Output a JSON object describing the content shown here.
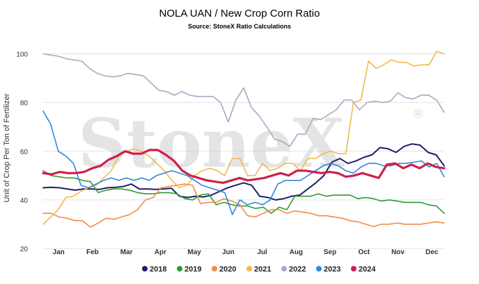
{
  "chart_data": {
    "type": "line",
    "title": "NOLA UAN / New Crop Corn Ratio",
    "subtitle": "Source: StoneX Ratio Calculations",
    "xlabel": "",
    "ylabel": "Unit of Crop Per Ton of Fertilizer",
    "ylim": [
      20,
      105
    ],
    "yticks": [
      20,
      40,
      60,
      80,
      100
    ],
    "xlim": [
      0,
      52
    ],
    "xticks": [
      {
        "label": "Jan",
        "x": 2
      },
      {
        "label": "Feb",
        "x": 6.4
      },
      {
        "label": "Mar",
        "x": 10.8
      },
      {
        "label": "Apr",
        "x": 15.2
      },
      {
        "label": "May",
        "x": 19.6
      },
      {
        "label": "Jun",
        "x": 24
      },
      {
        "label": "Jul",
        "x": 28.4
      },
      {
        "label": "Aug",
        "x": 32.8
      },
      {
        "label": "Sep",
        "x": 37.2
      },
      {
        "label": "Oct",
        "x": 41.6
      },
      {
        "label": "Nov",
        "x": 46
      },
      {
        "label": "Dec",
        "x": 50.4
      }
    ],
    "grid": true,
    "legend_position": "bottom",
    "watermark": "StoneX",
    "watermark_mark": "®",
    "series": [
      {
        "name": "2018",
        "color": "#1a1f6b",
        "width": 2,
        "values": [
          45,
          45.2,
          45,
          44.5,
          44,
          44.5,
          44.5,
          44.3,
          45,
          45.2,
          45.5,
          46.5,
          44.5,
          44.5,
          44.3,
          44.5,
          44.8,
          41.5,
          41,
          41.5,
          41.2,
          42,
          43.5,
          45,
          46,
          47,
          46,
          41.5,
          41,
          40,
          40.5,
          41.5,
          42,
          44.5,
          47,
          50,
          55.5,
          57,
          55,
          56,
          57.5,
          58.5,
          61.5,
          61,
          59.5,
          62,
          63,
          62.5,
          59.5,
          58.5,
          54
        ]
      },
      {
        "name": "2019",
        "color": "#2e9a2e",
        "width": 1.6,
        "values": [
          52,
          50,
          49.5,
          49,
          49,
          48,
          47.5,
          43,
          44,
          44.5,
          44.5,
          44,
          43,
          42.5,
          42.5,
          43,
          43,
          42.5,
          40.5,
          40,
          42,
          42.5,
          38,
          39,
          38,
          37.5,
          37.5,
          36.5,
          37,
          34.5,
          37,
          36,
          41.5,
          41.5,
          41.5,
          42.5,
          41.5,
          42,
          42,
          42,
          40.5,
          41,
          40.5,
          39.5,
          40,
          39.5,
          39,
          39,
          39,
          38,
          37.5,
          34.5
        ]
      },
      {
        "name": "2020",
        "color": "#f08c4a",
        "width": 1.6,
        "values": [
          34.5,
          34.5,
          33,
          32.5,
          31.5,
          31.5,
          28.8,
          30.5,
          32.5,
          32,
          33,
          34,
          36,
          40,
          41,
          45,
          45.5,
          46,
          46.5,
          46,
          38.5,
          39,
          39,
          40.5,
          39.5,
          38,
          33.5,
          33,
          34.5,
          36,
          36,
          34.5,
          35.5,
          35,
          34.5,
          33.5,
          33.5,
          33,
          32.5,
          31.5,
          31,
          30,
          29,
          30,
          30,
          30.5,
          30,
          30,
          30,
          30.5,
          31,
          30.5
        ]
      },
      {
        "name": "2021",
        "color": "#f5b84a",
        "width": 1.6,
        "values": [
          30,
          33,
          36,
          41,
          41.5,
          43.5,
          45,
          46,
          49,
          52,
          58,
          60,
          61,
          60,
          58,
          55,
          52,
          48,
          45,
          46,
          50,
          52,
          53,
          52,
          50,
          57,
          57,
          50,
          50,
          55,
          52,
          53,
          55,
          55,
          52,
          57,
          57,
          59,
          60,
          59,
          59,
          80,
          81,
          97,
          94,
          95.5,
          97.5,
          96.5,
          96.5,
          95,
          95.5,
          95.5,
          101,
          100
        ]
      },
      {
        "name": "2022",
        "color": "#a9a9c4",
        "width": 1.6,
        "values": [
          100,
          99.5,
          99,
          98,
          97.5,
          97,
          94,
          92,
          91,
          90.5,
          91,
          92,
          91.5,
          91,
          88,
          85,
          84.5,
          83,
          84.5,
          83,
          82.5,
          82.5,
          82.5,
          80,
          72,
          81,
          86,
          78,
          74.5,
          70,
          65,
          64,
          62,
          67,
          67,
          73.5,
          73,
          75,
          77,
          81,
          81,
          77,
          80,
          80.5,
          80,
          80.5,
          84,
          82,
          81.5,
          83,
          83,
          81,
          76
        ]
      },
      {
        "name": "2023",
        "color": "#2f86dd",
        "width": 1.6,
        "values": [
          76.5,
          71,
          60,
          58,
          55,
          46,
          45,
          46.5,
          48,
          49,
          48,
          49,
          48,
          49,
          48,
          50,
          51,
          52,
          51,
          50,
          48,
          46,
          45,
          44,
          43,
          34,
          40,
          38,
          39,
          38,
          40,
          46.5,
          48,
          48,
          48,
          50,
          52,
          54,
          55,
          54,
          52,
          51,
          53.5,
          55,
          55,
          54,
          54,
          55,
          55,
          55.5,
          56,
          53.5,
          55,
          49.5
        ]
      },
      {
        "name": "2024",
        "color": "#cf1f4a",
        "width": 3.2,
        "values": [
          51,
          50.5,
          51.5,
          51,
          51,
          51.5,
          53,
          54,
          56.5,
          58,
          60,
          59,
          59,
          60.5,
          60.5,
          58.5,
          56,
          52,
          50,
          49,
          48,
          47.5,
          47,
          48,
          49,
          48,
          48.5,
          49,
          50,
          51,
          50,
          52,
          52,
          51.5,
          51,
          51.5,
          51,
          49.5,
          50,
          51,
          50,
          49,
          54.5,
          55,
          53,
          54.5,
          53,
          55,
          53.5,
          53
        ]
      }
    ]
  }
}
